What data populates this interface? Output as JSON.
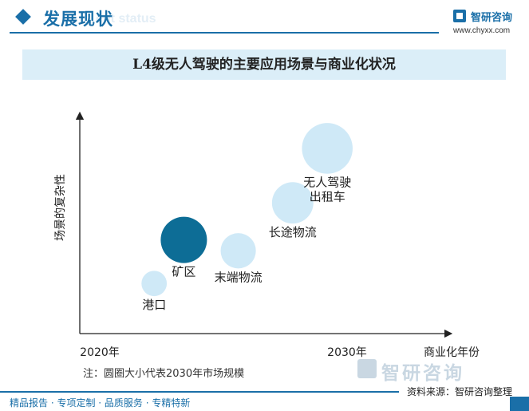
{
  "header": {
    "title": "发展现状",
    "ghost": "ent status"
  },
  "logo": {
    "name": "智研咨询",
    "url": "www.chyxx.com"
  },
  "banner": {
    "title": "L4级无人驾驶的主要应用场景与商业化状况"
  },
  "colors": {
    "accent": "#1a6fa8",
    "bubble_light": "#cfe9f7",
    "bubble_dark": "#0d6d96",
    "banner_bg": "#dbeef8"
  },
  "chart_data": {
    "type": "scatter",
    "title": "L4级无人驾驶的主要应用场景与商业化状况",
    "xlabel": "商业化年份",
    "ylabel": "场景的复杂性",
    "x_ticks": [
      "2020年",
      "2030年"
    ],
    "x_tick_positions": [
      0,
      1
    ],
    "xlim": [
      0,
      1.35
    ],
    "ylim": [
      0,
      1
    ],
    "points": [
      {
        "label": "港口",
        "x": 0.22,
        "y": 0.23,
        "size": 0.3,
        "highlight": false
      },
      {
        "label": "矿区",
        "x": 0.34,
        "y": 0.43,
        "size": 1.0,
        "highlight": true
      },
      {
        "label": "末端物流",
        "x": 0.56,
        "y": 0.38,
        "size": 0.58,
        "highlight": false
      },
      {
        "label": "长途物流",
        "x": 0.78,
        "y": 0.6,
        "size": 0.8,
        "highlight": false
      },
      {
        "label": "无人驾驶\n出租车",
        "x": 0.92,
        "y": 0.85,
        "size": 1.2,
        "highlight": false
      }
    ],
    "grid": false,
    "legend": "none"
  },
  "note": "注：圆圈大小代表2030年市场规模",
  "watermark": "智研咨询",
  "source": "资料来源：智研咨询整理",
  "footer": "精品报告 · 专项定制 · 品质服务 · 专精特新"
}
